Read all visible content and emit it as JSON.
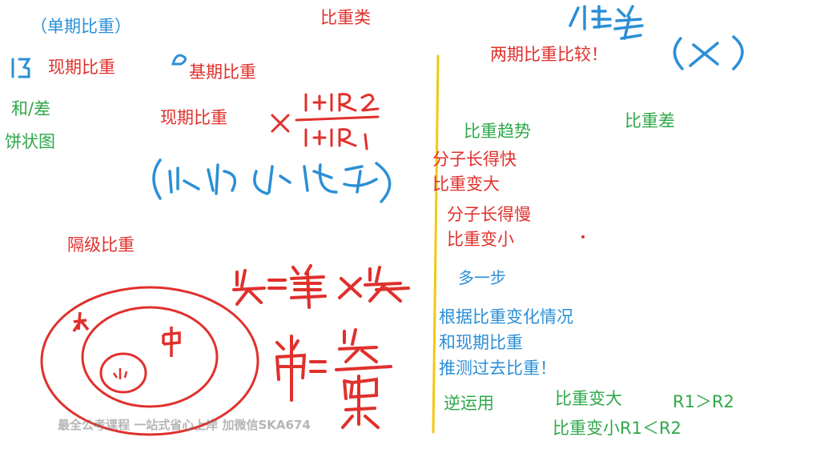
{
  "left": {
    "single_period": "（单期比重）",
    "current_share": "现期比重",
    "base_share": "基期比重",
    "sum_diff": "和/差",
    "pie_chart": "饼状图",
    "current_share_formula": "现期比重",
    "gap_share": "隔级比重"
  },
  "top": {
    "category": "比重类"
  },
  "right": {
    "two_period_compare": "两期比重比较！",
    "trend": "比重趋势",
    "diff": "比重差",
    "numerator_fast": "分子长得快",
    "share_up": "比重变大",
    "numerator_slow": "分子长得慢",
    "share_down": "比重变小",
    "one_more_step": "多一步",
    "infer_line1": "根据比重变化情况",
    "infer_line2": "和现期比重",
    "infer_line3": "推测过去比重！",
    "reverse_use": "逆运用",
    "share_up_2": "比重变大",
    "r1_gt_r2": "R1＞R2",
    "share_down_r1_lt_r2": "比重变小R1＜R2"
  },
  "watermark": "最全公考课程 一站式省心上岸 加微信SKA674",
  "colors": {
    "red": "#e0302c",
    "green": "#2fa84a",
    "blue": "#2b8fd6",
    "divider": "#f2c811"
  }
}
